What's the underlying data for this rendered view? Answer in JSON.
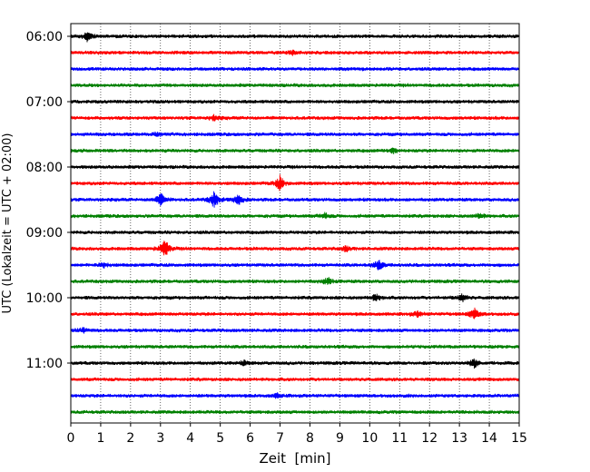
{
  "chart_data": {
    "type": "line",
    "title": "",
    "xlabel": "Zeit  [min]",
    "ylabel": "UTC (Lokalzeit = UTC + 02:00)",
    "xlim": [
      0,
      15
    ],
    "x_ticks": [
      0,
      1,
      2,
      3,
      4,
      5,
      6,
      7,
      8,
      9,
      10,
      11,
      12,
      13,
      14,
      15
    ],
    "y_tick_labels": [
      "06:00",
      "07:00",
      "08:00",
      "09:00",
      "10:00",
      "11:00"
    ],
    "grid": "vertical dotted at each minute",
    "trace_colors": [
      "#000000",
      "#ff0000",
      "#0000ff",
      "#008000"
    ],
    "traces": [
      {
        "start": "06:00",
        "events": [
          {
            "t": 0.55,
            "amp": 5
          }
        ]
      },
      {
        "start": "06:15",
        "events": [
          {
            "t": 7.4,
            "amp": 2
          }
        ]
      },
      {
        "start": "06:30",
        "events": []
      },
      {
        "start": "06:45",
        "events": []
      },
      {
        "start": "07:00",
        "events": []
      },
      {
        "start": "07:15",
        "events": [
          {
            "t": 4.8,
            "amp": 3
          }
        ]
      },
      {
        "start": "07:30",
        "events": [
          {
            "t": 2.9,
            "amp": 2
          }
        ]
      },
      {
        "start": "07:45",
        "events": [
          {
            "t": 10.8,
            "amp": 3
          }
        ]
      },
      {
        "start": "08:00",
        "events": []
      },
      {
        "start": "08:15",
        "events": [
          {
            "t": 7.0,
            "amp": 8
          }
        ]
      },
      {
        "start": "08:30",
        "events": [
          {
            "t": 3.0,
            "amp": 7
          },
          {
            "t": 4.8,
            "amp": 9
          },
          {
            "t": 5.6,
            "amp": 6
          }
        ]
      },
      {
        "start": "08:45",
        "events": [
          {
            "t": 8.5,
            "amp": 3
          },
          {
            "t": 13.7,
            "amp": 3
          }
        ]
      },
      {
        "start": "09:00",
        "events": []
      },
      {
        "start": "09:15",
        "events": [
          {
            "t": 3.15,
            "amp": 10
          },
          {
            "t": 9.2,
            "amp": 3
          }
        ]
      },
      {
        "start": "09:30",
        "events": [
          {
            "t": 1.1,
            "amp": 3
          },
          {
            "t": 10.3,
            "amp": 6
          }
        ]
      },
      {
        "start": "09:45",
        "events": [
          {
            "t": 8.6,
            "amp": 4
          }
        ]
      },
      {
        "start": "10:00",
        "events": [
          {
            "t": 10.2,
            "amp": 4
          },
          {
            "t": 13.1,
            "amp": 4
          }
        ]
      },
      {
        "start": "10:15",
        "events": [
          {
            "t": 13.5,
            "amp": 6
          },
          {
            "t": 11.6,
            "amp": 3
          }
        ]
      },
      {
        "start": "10:30",
        "events": [
          {
            "t": 0.4,
            "amp": 3
          }
        ]
      },
      {
        "start": "10:45",
        "events": []
      },
      {
        "start": "11:00",
        "events": [
          {
            "t": 13.5,
            "amp": 5
          },
          {
            "t": 5.8,
            "amp": 2
          }
        ]
      },
      {
        "start": "11:15",
        "events": []
      },
      {
        "start": "11:30",
        "events": [
          {
            "t": 6.9,
            "amp": 2
          }
        ]
      },
      {
        "start": "11:45",
        "events": []
      }
    ]
  }
}
